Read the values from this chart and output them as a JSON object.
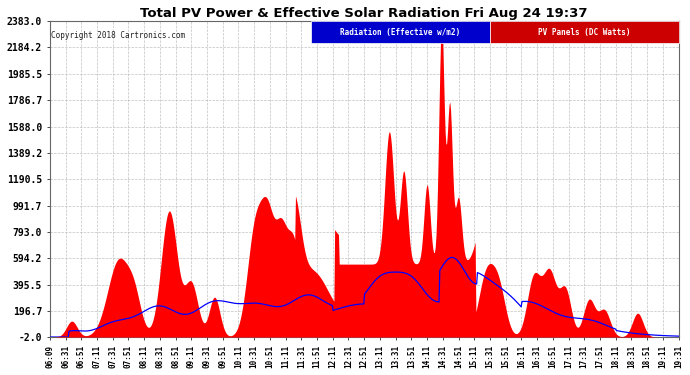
{
  "title": "Total PV Power & Effective Solar Radiation Fri Aug 24 19:37",
  "copyright_text": "Copyright 2018 Cartronics.com",
  "legend_radiation": "Radiation (Effective w/m2)",
  "legend_pv": "PV Panels (DC Watts)",
  "legend_radiation_bg": "#0000cc",
  "legend_pv_bg": "#cc0000",
  "bg_color": "#ffffff",
  "plot_bg_color": "#ffffff",
  "grid_color": "#bbbbbb",
  "title_color": "#000000",
  "yticks": [
    2383.0,
    2184.2,
    1985.5,
    1786.7,
    1588.0,
    1389.2,
    1190.5,
    991.7,
    793.0,
    594.2,
    395.5,
    196.7,
    -2.0
  ],
  "ymin": -2.0,
  "ymax": 2383.0,
  "xtick_labels": [
    "06:09",
    "06:31",
    "06:51",
    "07:11",
    "07:31",
    "07:51",
    "08:11",
    "08:31",
    "08:51",
    "09:11",
    "09:31",
    "09:51",
    "10:11",
    "10:31",
    "10:51",
    "11:11",
    "11:31",
    "11:51",
    "12:11",
    "12:31",
    "12:51",
    "13:11",
    "13:31",
    "13:51",
    "14:11",
    "14:31",
    "14:51",
    "15:11",
    "15:31",
    "15:51",
    "16:11",
    "16:31",
    "16:51",
    "17:11",
    "17:31",
    "17:51",
    "18:11",
    "18:31",
    "18:51",
    "19:11",
    "19:31"
  ],
  "pv_color": "#ff0000",
  "radiation_color": "#0000ff"
}
